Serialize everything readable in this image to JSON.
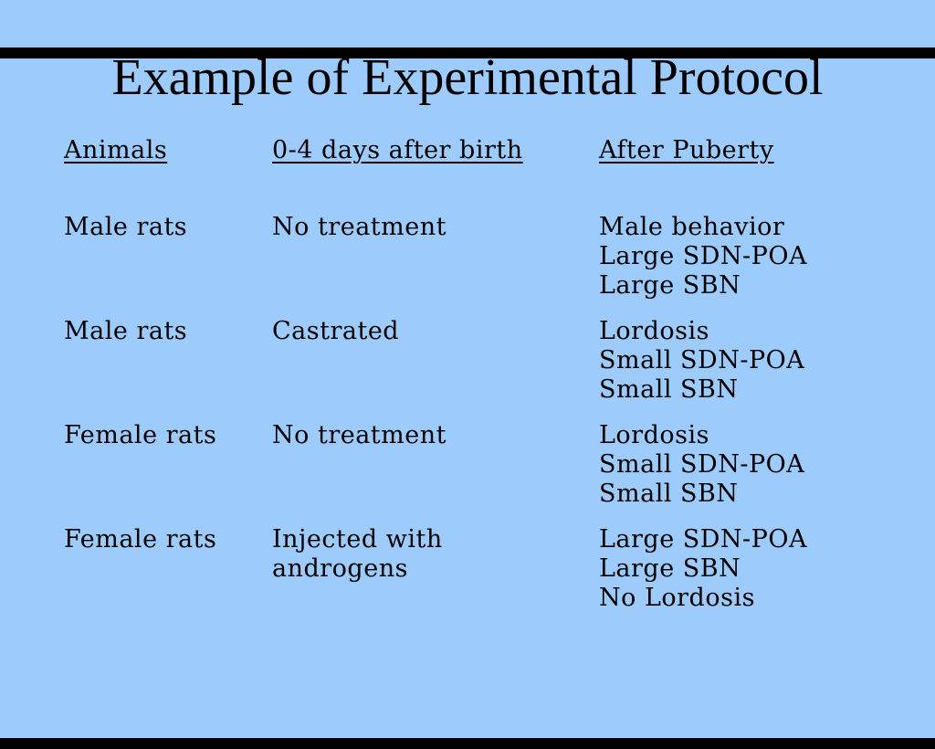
{
  "slide": {
    "title": "Example of Experimental Protocol",
    "colors": {
      "background": "#9CCBFC",
      "text": "#000000",
      "edge_bars": "#000000"
    },
    "table": {
      "headers": {
        "animals": "Animals",
        "treatment": "0-4 days after birth",
        "puberty": "After Puberty"
      },
      "rows": [
        {
          "animals": "Male rats",
          "treatment": [
            "No treatment"
          ],
          "outcome": [
            "Male behavior",
            "Large SDN-POA",
            "Large SBN"
          ]
        },
        {
          "animals": "Male rats",
          "treatment": [
            "Castrated"
          ],
          "outcome": [
            "Lordosis",
            "Small SDN-POA",
            "Small SBN"
          ]
        },
        {
          "animals": "Female rats",
          "treatment": [
            "No treatment"
          ],
          "outcome": [
            "Lordosis",
            "Small SDN-POA",
            "Small SBN"
          ]
        },
        {
          "animals": "Female rats",
          "treatment": [
            "Injected with",
            "androgens"
          ],
          "outcome": [
            "Large SDN-POA",
            "Large SBN",
            "No Lordosis"
          ]
        }
      ]
    }
  }
}
